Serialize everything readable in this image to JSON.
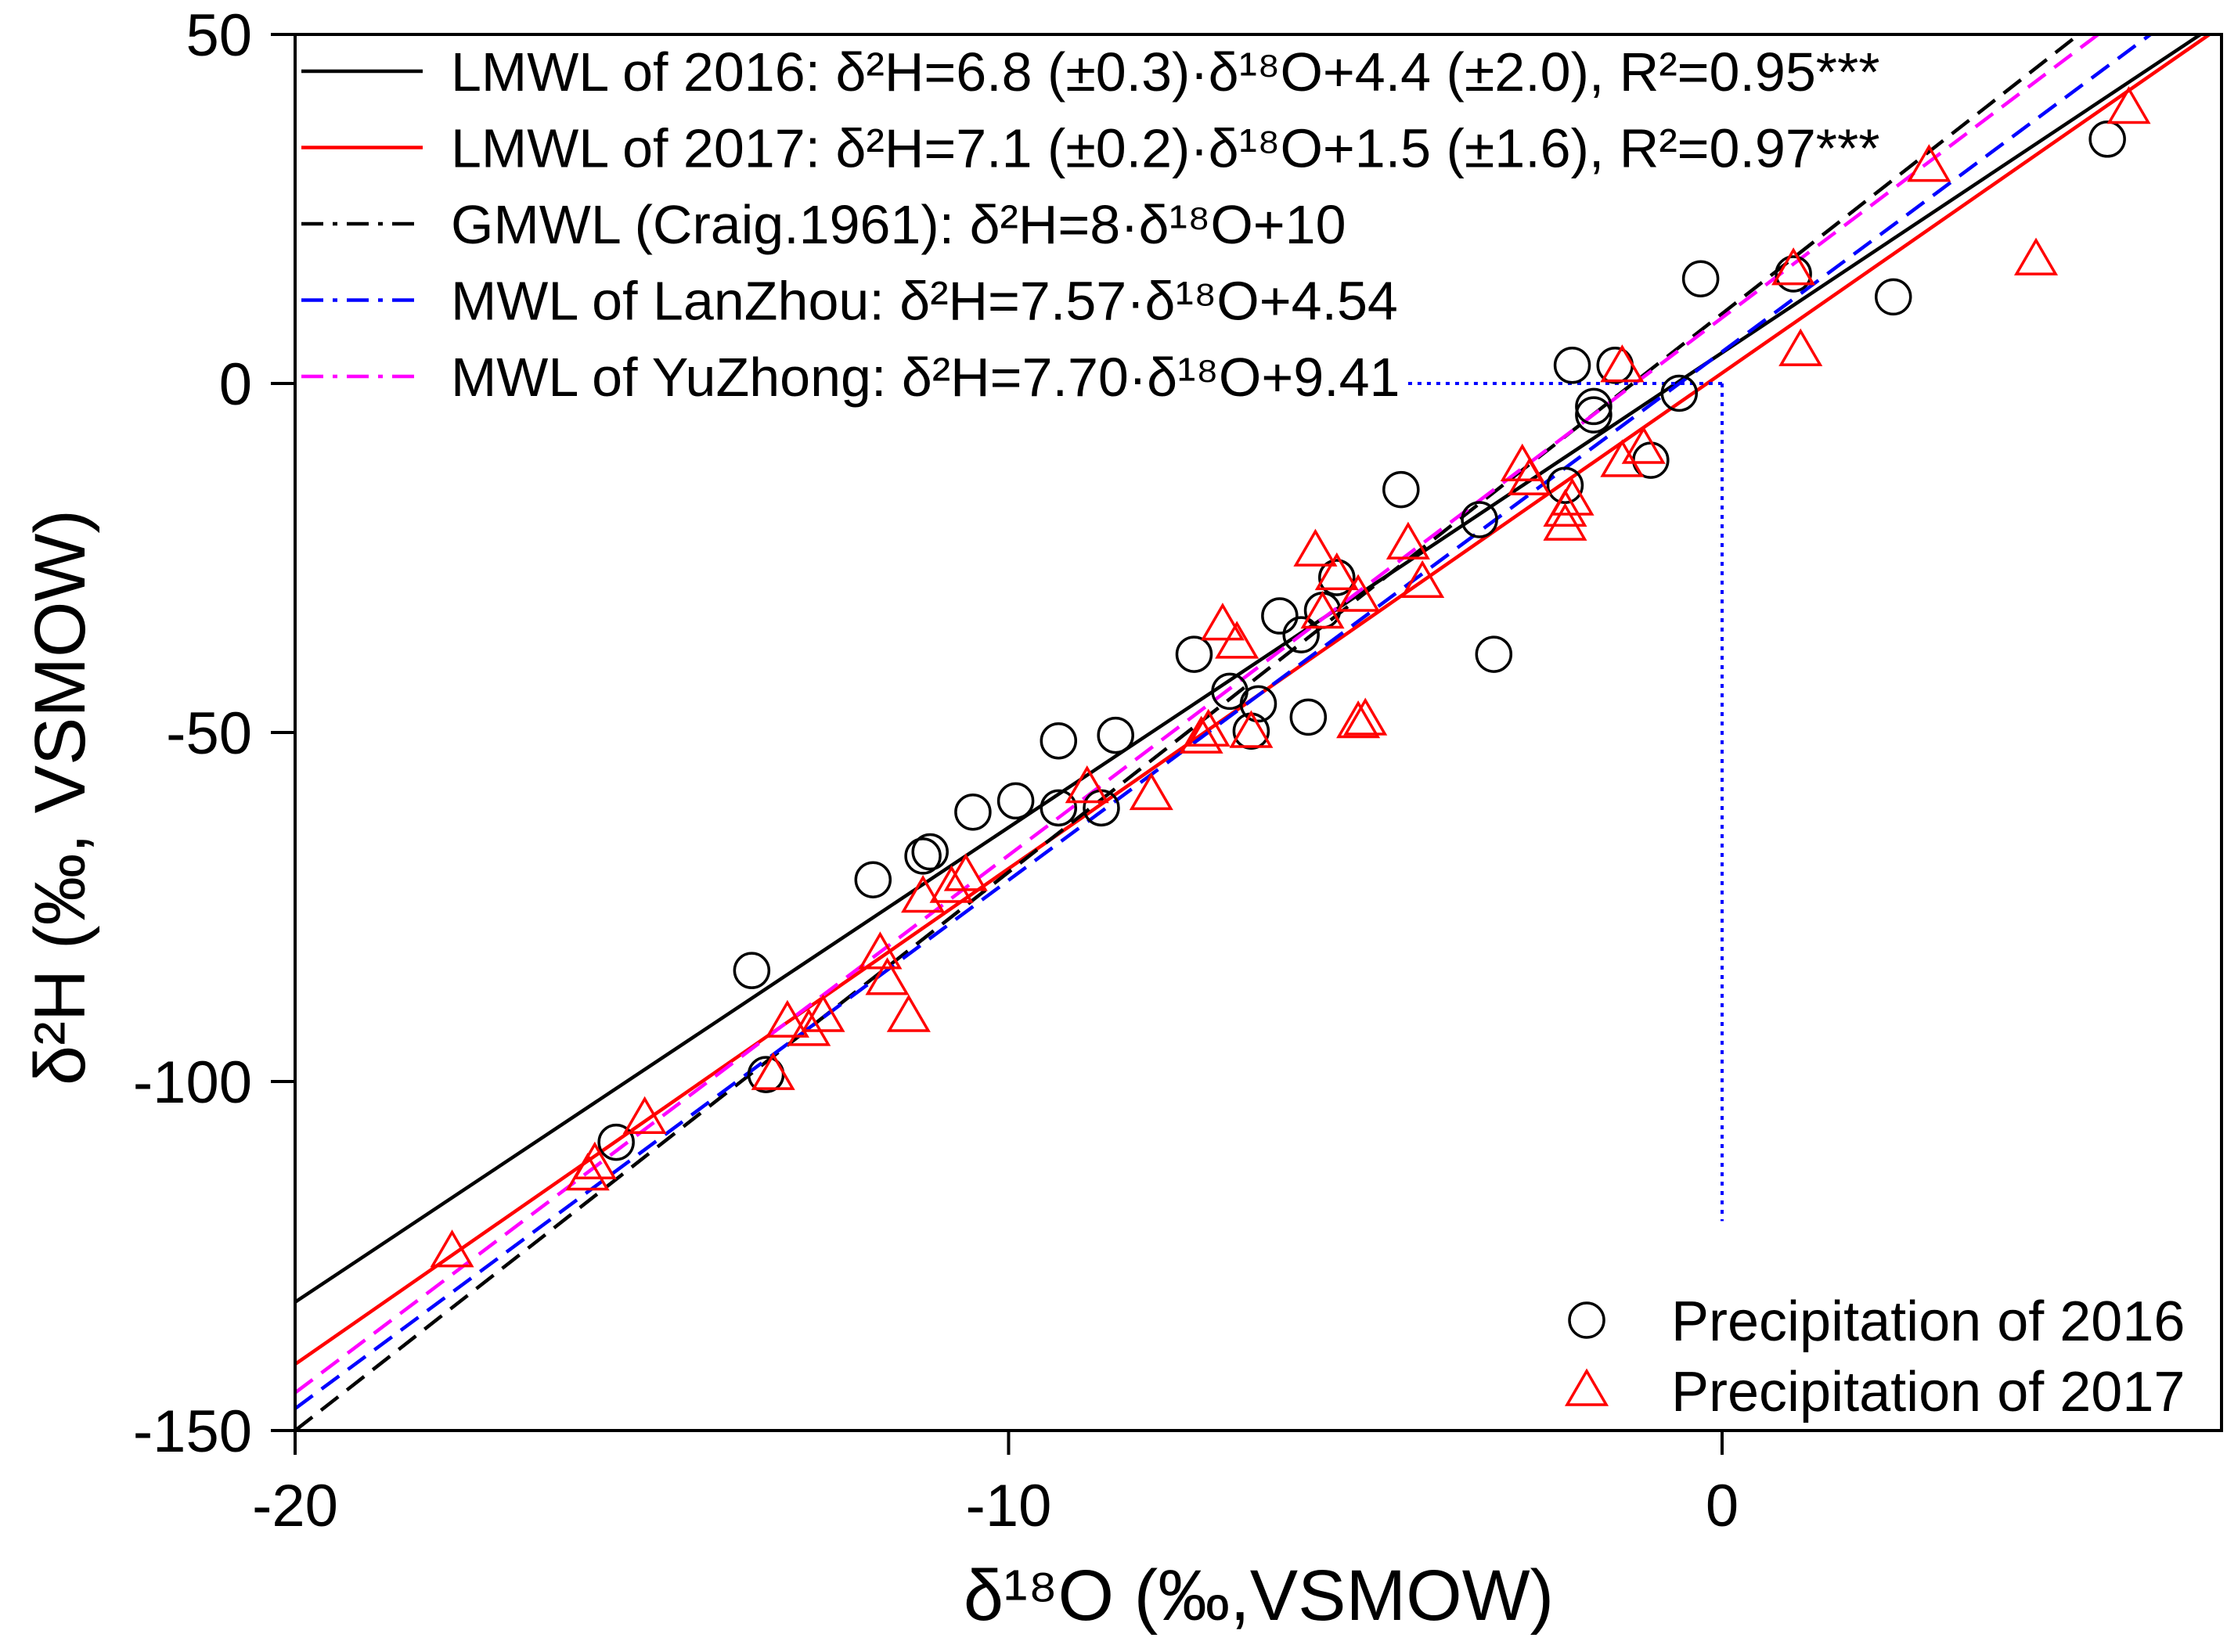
{
  "chart_data": {
    "type": "scatter",
    "xlabel": "δ¹⁸O (‰,VSMOW)",
    "ylabel": "δ²H (‰, VSMOW)",
    "xlim": [
      -20,
      7
    ],
    "ylim": [
      -150,
      50
    ],
    "xticks": [
      -20,
      -10,
      0
    ],
    "xtick_labels": [
      "-20",
      "-10",
      "0"
    ],
    "yticks": [
      50,
      0,
      -50,
      -100,
      -150
    ],
    "ytick_labels": [
      "50",
      "0",
      "-50",
      "-100",
      "-150"
    ],
    "grid": false,
    "lines": [
      {
        "label": "LMWL of 2016: δ²H=6.8 (±0.3)·δ¹⁸O+4.4 (±2.0), R²=0.95***",
        "slope": 6.8,
        "intercept": 4.4,
        "color": "#000000",
        "dashed": false
      },
      {
        "label": "LMWL of 2017: δ²H=7.1 (±0.2)·δ¹⁸O+1.5 (±1.6), R²=0.97***",
        "slope": 7.1,
        "intercept": 1.5,
        "color": "#FF0000",
        "dashed": false
      },
      {
        "label": "GMWL (Craig.1961): δ²H=8·δ¹⁸O+10",
        "slope": 8,
        "intercept": 10,
        "color": "#000000",
        "dashed": true
      },
      {
        "label": "MWL of LanZhou: δ²H=7.57·δ¹⁸O+4.54",
        "slope": 7.57,
        "intercept": 4.54,
        "color": "#0000FF",
        "dashed": true
      },
      {
        "label": "MWL of YuZhong: δ²H=7.70·δ¹⁸O+9.41",
        "slope": 7.7,
        "intercept": 9.41,
        "color": "#FF00FF",
        "dashed": true
      }
    ],
    "series": [
      {
        "name": "Precipitation of 2016",
        "color": "#000000",
        "points": [
          [
            5.4,
            35.0
          ],
          [
            2.4,
            12.4
          ],
          [
            1.0,
            15.7
          ],
          [
            -0.3,
            15.0
          ],
          [
            -0.6,
            -1.4
          ],
          [
            -1.0,
            -11.0
          ],
          [
            -1.5,
            2.6
          ],
          [
            -2.1,
            2.6
          ],
          [
            -1.8,
            -3.3
          ],
          [
            -1.8,
            -4.5
          ],
          [
            -2.2,
            -14.6
          ],
          [
            -3.4,
            -19.5
          ],
          [
            -4.5,
            -15.2
          ],
          [
            -3.2,
            -38.8
          ],
          [
            -5.4,
            -27.8
          ],
          [
            -5.6,
            -32.5
          ],
          [
            -5.9,
            -36.0
          ],
          [
            -6.2,
            -33.3
          ],
          [
            -5.8,
            -47.8
          ],
          [
            -6.5,
            -45.9
          ],
          [
            -6.6,
            -49.8
          ],
          [
            -6.9,
            -44.1
          ],
          [
            -7.4,
            -38.8
          ],
          [
            -8.5,
            -50.4
          ],
          [
            -9.3,
            -51.2
          ],
          [
            -9.9,
            -59.8
          ],
          [
            -9.3,
            -60.8
          ],
          [
            -8.7,
            -60.8
          ],
          [
            -10.5,
            -61.4
          ],
          [
            -11.1,
            -67.1
          ],
          [
            -11.2,
            -67.7
          ],
          [
            -11.9,
            -71.1
          ],
          [
            -13.6,
            -84.1
          ],
          [
            -13.4,
            -99.0
          ],
          [
            -15.5,
            -108.7
          ]
        ]
      },
      {
        "name": "Precipitation of 2017",
        "color": "#FF0000",
        "points": [
          [
            5.7,
            39.4
          ],
          [
            2.9,
            31.1
          ],
          [
            4.4,
            17.7
          ],
          [
            1.0,
            16.3
          ],
          [
            1.1,
            4.7
          ],
          [
            -1.4,
            2.4
          ],
          [
            -1.1,
            -9.3
          ],
          [
            -1.4,
            -11.2
          ],
          [
            -2.1,
            -16.7
          ],
          [
            -2.2,
            -18.3
          ],
          [
            -2.2,
            -20.3
          ],
          [
            -2.8,
            -11.8
          ],
          [
            -2.7,
            -13.8
          ],
          [
            -4.4,
            -23.0
          ],
          [
            -4.2,
            -28.5
          ],
          [
            -5.1,
            -30.5
          ],
          [
            -5.4,
            -27.4
          ],
          [
            -5.7,
            -24.0
          ],
          [
            -5.6,
            -32.9
          ],
          [
            -5.0,
            -48.2
          ],
          [
            -5.1,
            -48.6
          ],
          [
            -7.0,
            -34.6
          ],
          [
            -6.8,
            -37.2
          ],
          [
            -6.6,
            -50.0
          ],
          [
            -7.3,
            -50.8
          ],
          [
            -7.2,
            -49.8
          ],
          [
            -8.0,
            -58.9
          ],
          [
            -8.9,
            -57.9
          ],
          [
            -10.6,
            -70.5
          ],
          [
            -10.8,
            -72.2
          ],
          [
            -11.2,
            -73.6
          ],
          [
            -11.8,
            -81.7
          ],
          [
            -11.7,
            -85.4
          ],
          [
            -11.4,
            -90.7
          ],
          [
            -12.6,
            -90.7
          ],
          [
            -12.8,
            -92.7
          ],
          [
            -13.1,
            -91.5
          ],
          [
            -13.3,
            -99.0
          ],
          [
            -15.1,
            -105.3
          ],
          [
            -15.8,
            -111.8
          ],
          [
            -15.9,
            -113.4
          ],
          [
            -17.8,
            -124.4
          ]
        ]
      }
    ],
    "reference_lines": [
      {
        "x1": -4.4,
        "y1": 0,
        "x2": 0,
        "y2": 0,
        "color": "#0000FF"
      },
      {
        "x1": 0,
        "y1": 0,
        "x2": 0,
        "y2": -120,
        "color": "#0000FF"
      }
    ]
  }
}
